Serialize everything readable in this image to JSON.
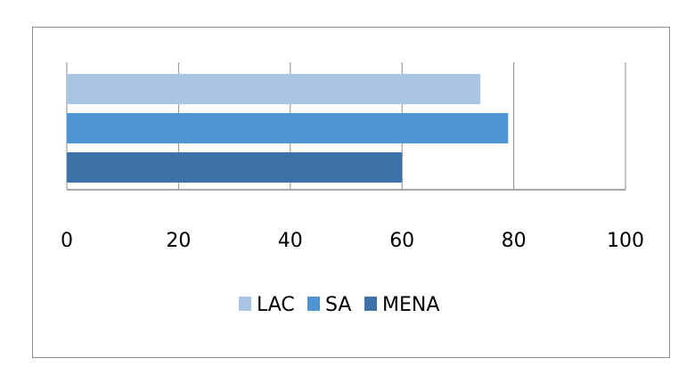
{
  "chart_data": {
    "type": "bar",
    "orientation": "horizontal",
    "categories": [
      ""
    ],
    "series": [
      {
        "name": "LAC",
        "values": [
          74
        ],
        "color": "#a9c4e4"
      },
      {
        "name": "SA",
        "values": [
          79
        ],
        "color": "#4f93d2"
      },
      {
        "name": "MENA",
        "values": [
          60
        ],
        "color": "#3d71a8"
      }
    ],
    "title": "",
    "xlabel": "",
    "ylabel": "",
    "xlim": [
      0,
      100
    ],
    "xticks": [
      "0",
      "20",
      "40",
      "60",
      "80",
      "100"
    ],
    "grid": "vertical",
    "legend_position": "bottom"
  }
}
